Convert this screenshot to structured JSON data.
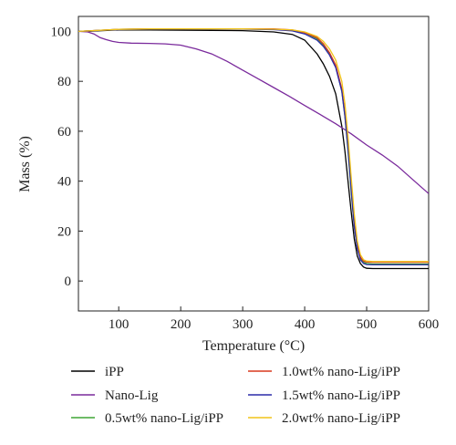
{
  "chart_data": {
    "type": "line",
    "title": "",
    "xlabel": "Temperature (°C)",
    "ylabel": "Mass (%)",
    "xlim": [
      35,
      600
    ],
    "ylim": [
      -12,
      106
    ],
    "x_ticks": [
      100,
      200,
      300,
      400,
      500,
      600
    ],
    "y_ticks": [
      0,
      20,
      40,
      60,
      80,
      100
    ],
    "grid": false,
    "legend_position": "below",
    "series": [
      {
        "name": "iPP",
        "color": "#000000",
        "points": [
          [
            35,
            100
          ],
          [
            50,
            100
          ],
          [
            100,
            100.6
          ],
          [
            150,
            100.6
          ],
          [
            200,
            100.5
          ],
          [
            250,
            100.4
          ],
          [
            300,
            100.3
          ],
          [
            350,
            99.8
          ],
          [
            380,
            98.8
          ],
          [
            400,
            96.5
          ],
          [
            420,
            91
          ],
          [
            430,
            87
          ],
          [
            440,
            82
          ],
          [
            450,
            75
          ],
          [
            460,
            62
          ],
          [
            465,
            52
          ],
          [
            470,
            40
          ],
          [
            475,
            28
          ],
          [
            480,
            17
          ],
          [
            485,
            10
          ],
          [
            490,
            7
          ],
          [
            495,
            5.6
          ],
          [
            500,
            5.1
          ],
          [
            510,
            5
          ],
          [
            550,
            5
          ],
          [
            600,
            5
          ]
        ]
      },
      {
        "name": "Nano-Lig",
        "color": "#7a2a9c",
        "points": [
          [
            35,
            100
          ],
          [
            50,
            99.8
          ],
          [
            60,
            99
          ],
          [
            70,
            97.5
          ],
          [
            80,
            96.7
          ],
          [
            90,
            96
          ],
          [
            100,
            95.6
          ],
          [
            120,
            95.3
          ],
          [
            150,
            95.2
          ],
          [
            175,
            95
          ],
          [
            200,
            94.5
          ],
          [
            225,
            93
          ],
          [
            250,
            91
          ],
          [
            275,
            88
          ],
          [
            300,
            84.5
          ],
          [
            325,
            81
          ],
          [
            350,
            77.5
          ],
          [
            375,
            74
          ],
          [
            400,
            70.3
          ],
          [
            425,
            66.7
          ],
          [
            450,
            63
          ],
          [
            475,
            59
          ],
          [
            500,
            54.5
          ],
          [
            525,
            50.5
          ],
          [
            550,
            46
          ],
          [
            575,
            40.5
          ],
          [
            600,
            35
          ]
        ]
      },
      {
        "name": "0.5wt% nano-Lig/iPP",
        "color": "#3fa535",
        "points": [
          [
            35,
            100
          ],
          [
            50,
            100.2
          ],
          [
            100,
            100.8
          ],
          [
            150,
            101
          ],
          [
            200,
            101
          ],
          [
            250,
            101
          ],
          [
            300,
            101
          ],
          [
            350,
            100.8
          ],
          [
            380,
            100.5
          ],
          [
            400,
            99.5
          ],
          [
            420,
            97
          ],
          [
            430,
            94.5
          ],
          [
            440,
            91
          ],
          [
            450,
            86
          ],
          [
            460,
            76
          ],
          [
            465,
            66
          ],
          [
            470,
            52
          ],
          [
            475,
            36
          ],
          [
            480,
            22
          ],
          [
            485,
            13
          ],
          [
            490,
            9
          ],
          [
            495,
            7.5
          ],
          [
            500,
            7
          ],
          [
            510,
            6.8
          ],
          [
            550,
            6.8
          ],
          [
            600,
            6.8
          ]
        ]
      },
      {
        "name": "1.0wt% nano-Lig/iPP",
        "color": "#d9381e",
        "points": [
          [
            35,
            100
          ],
          [
            50,
            100.2
          ],
          [
            100,
            100.8
          ],
          [
            150,
            101
          ],
          [
            200,
            101
          ],
          [
            250,
            101
          ],
          [
            300,
            101
          ],
          [
            350,
            101
          ],
          [
            380,
            100.6
          ],
          [
            400,
            99.5
          ],
          [
            420,
            97.5
          ],
          [
            430,
            95
          ],
          [
            440,
            91.5
          ],
          [
            450,
            86.5
          ],
          [
            460,
            77
          ],
          [
            465,
            67
          ],
          [
            470,
            54
          ],
          [
            475,
            38
          ],
          [
            480,
            23
          ],
          [
            485,
            14
          ],
          [
            490,
            9.5
          ],
          [
            495,
            8
          ],
          [
            500,
            7.6
          ],
          [
            510,
            7.5
          ],
          [
            550,
            7.5
          ],
          [
            600,
            7.5
          ]
        ]
      },
      {
        "name": "1.5wt% nano-Lig/iPP",
        "color": "#2c2ca8",
        "points": [
          [
            35,
            100
          ],
          [
            50,
            100.2
          ],
          [
            100,
            100.7
          ],
          [
            150,
            100.9
          ],
          [
            200,
            100.9
          ],
          [
            250,
            100.9
          ],
          [
            300,
            100.9
          ],
          [
            350,
            100.7
          ],
          [
            380,
            100.2
          ],
          [
            400,
            99
          ],
          [
            420,
            96.5
          ],
          [
            430,
            94
          ],
          [
            440,
            90.5
          ],
          [
            450,
            85.5
          ],
          [
            460,
            76
          ],
          [
            465,
            66
          ],
          [
            470,
            53
          ],
          [
            475,
            37
          ],
          [
            480,
            22
          ],
          [
            485,
            13
          ],
          [
            490,
            8.5
          ],
          [
            495,
            7
          ],
          [
            500,
            6.6
          ],
          [
            510,
            6.5
          ],
          [
            550,
            6.5
          ],
          [
            600,
            6.5
          ]
        ]
      },
      {
        "name": "2.0wt% nano-Lig/iPP",
        "color": "#f0c419",
        "points": [
          [
            35,
            100
          ],
          [
            50,
            100.2
          ],
          [
            100,
            100.8
          ],
          [
            150,
            101
          ],
          [
            200,
            101
          ],
          [
            250,
            101
          ],
          [
            300,
            101
          ],
          [
            350,
            100.9
          ],
          [
            380,
            100.6
          ],
          [
            400,
            99.8
          ],
          [
            420,
            98
          ],
          [
            430,
            96
          ],
          [
            440,
            93
          ],
          [
            450,
            88.5
          ],
          [
            460,
            80
          ],
          [
            465,
            71
          ],
          [
            470,
            58
          ],
          [
            475,
            42
          ],
          [
            480,
            27
          ],
          [
            485,
            16
          ],
          [
            490,
            10.5
          ],
          [
            495,
            8.5
          ],
          [
            500,
            8
          ],
          [
            510,
            7.8
          ],
          [
            550,
            7.8
          ],
          [
            600,
            7.8
          ]
        ]
      }
    ]
  }
}
